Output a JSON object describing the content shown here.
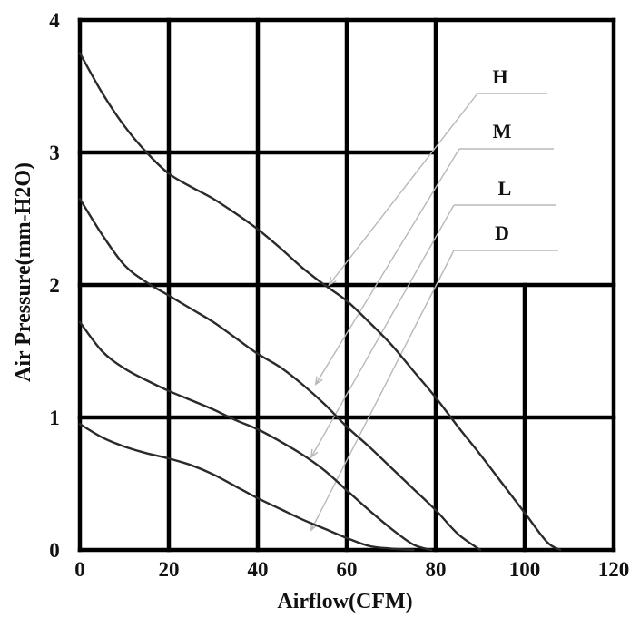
{
  "chart_data": {
    "type": "line",
    "xlabel": "Airflow(CFM)",
    "ylabel": "Air Pressure(mm-H2O)",
    "xlim": [
      0,
      120
    ],
    "ylim": [
      0,
      4
    ],
    "x_ticks": [
      "0",
      "20",
      "40",
      "60",
      "80",
      "100",
      "120"
    ],
    "y_ticks": [
      "0",
      "1",
      "2",
      "3",
      "4"
    ],
    "grid": true,
    "legend": "top-right",
    "series": [
      {
        "name": "H",
        "x": [
          0,
          5,
          10,
          15,
          20,
          25,
          30,
          35,
          40,
          45,
          50,
          55,
          60,
          65,
          70,
          75,
          80,
          85,
          90,
          95,
          100,
          105,
          108
        ],
        "y": [
          3.75,
          3.45,
          3.2,
          3.0,
          2.84,
          2.74,
          2.65,
          2.54,
          2.42,
          2.28,
          2.13,
          2.0,
          1.88,
          1.72,
          1.55,
          1.35,
          1.15,
          0.93,
          0.72,
          0.5,
          0.28,
          0.06,
          0.0
        ]
      },
      {
        "name": "M",
        "x": [
          0,
          5,
          10,
          15,
          20,
          25,
          30,
          35,
          40,
          45,
          50,
          55,
          60,
          65,
          70,
          75,
          80,
          85,
          90
        ],
        "y": [
          2.65,
          2.38,
          2.15,
          2.02,
          1.92,
          1.82,
          1.72,
          1.6,
          1.48,
          1.38,
          1.25,
          1.1,
          0.93,
          0.78,
          0.62,
          0.46,
          0.3,
          0.12,
          0.0
        ]
      },
      {
        "name": "L",
        "x": [
          0,
          5,
          10,
          15,
          20,
          25,
          30,
          35,
          40,
          45,
          50,
          55,
          60,
          65,
          70,
          75,
          79
        ],
        "y": [
          1.72,
          1.5,
          1.37,
          1.28,
          1.2,
          1.13,
          1.06,
          0.98,
          0.91,
          0.82,
          0.72,
          0.6,
          0.45,
          0.3,
          0.16,
          0.04,
          0.0
        ]
      },
      {
        "name": "D",
        "x": [
          0,
          5,
          10,
          15,
          20,
          25,
          30,
          35,
          40,
          45,
          50,
          55,
          60,
          65,
          70,
          75
        ],
        "y": [
          0.95,
          0.85,
          0.78,
          0.73,
          0.69,
          0.64,
          0.57,
          0.48,
          0.39,
          0.31,
          0.23,
          0.16,
          0.09,
          0.03,
          0.01,
          0.0
        ]
      }
    ]
  }
}
